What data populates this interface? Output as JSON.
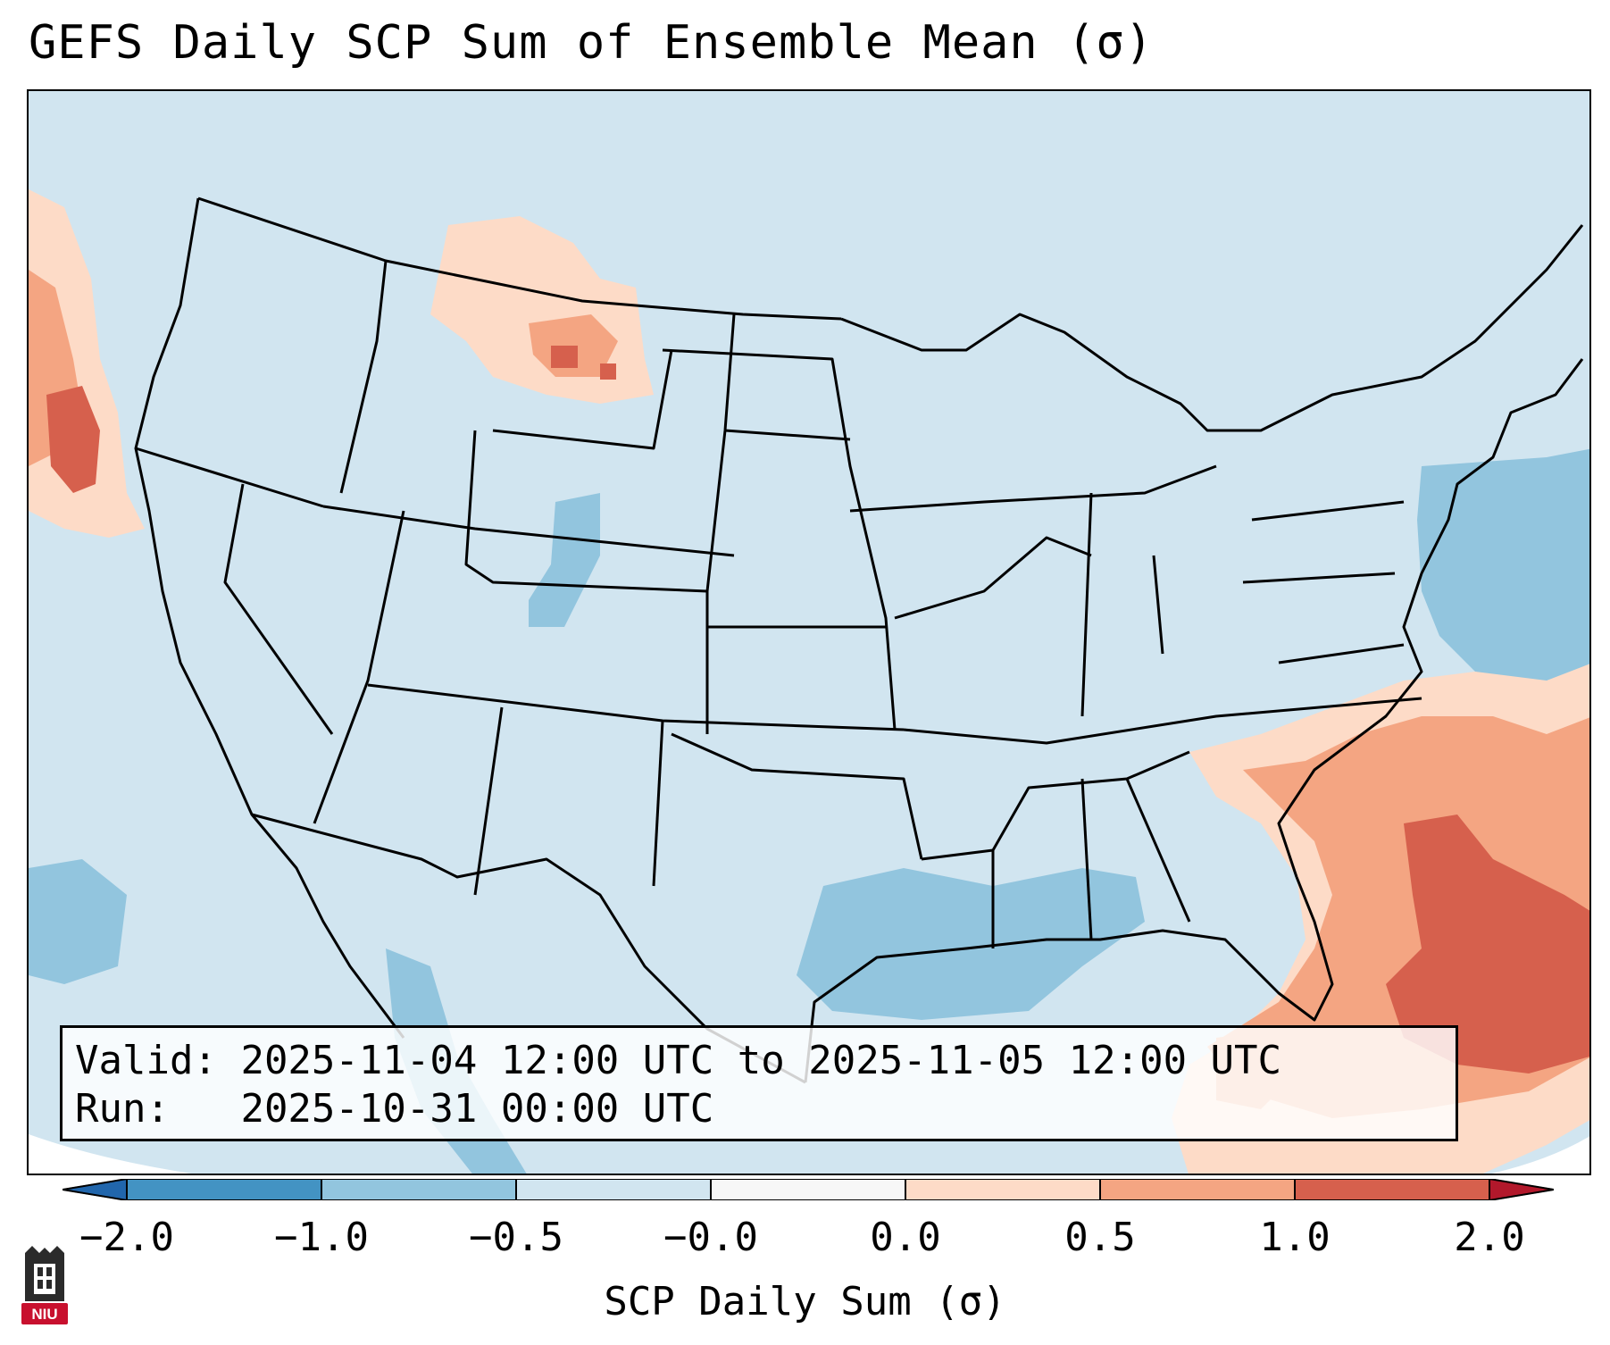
{
  "title": "GEFS Daily SCP Sum of Ensemble Mean (σ)",
  "info": {
    "valid_label": "Valid:",
    "valid_value": "2025-11-04 12:00 UTC to 2025-11-05 12:00 UTC",
    "run_label": "Run:",
    "run_value": "2025-10-31 00:00 UTC"
  },
  "colorbar": {
    "label": "SCP Daily Sum (σ)",
    "tick_labels": [
      "−2.0",
      "−1.0",
      "−0.5",
      "−0.0",
      "0.0",
      "0.5",
      "1.0",
      "2.0"
    ],
    "bin_colors": [
      "#4393c3",
      "#92c5de",
      "#d1e5f0",
      "#f7f7f7",
      "#fddbc7",
      "#f4a582",
      "#d6604d"
    ],
    "under_color": "#2166ac",
    "over_color": "#b2182b"
  },
  "colors": {
    "background_field": "#d1e5f0",
    "outside_domain": "#ffffff",
    "borders": "#000000"
  },
  "logo": {
    "text": "NIU",
    "color": "#c8102e"
  },
  "icons": [
    "niu-logo-icon"
  ]
}
